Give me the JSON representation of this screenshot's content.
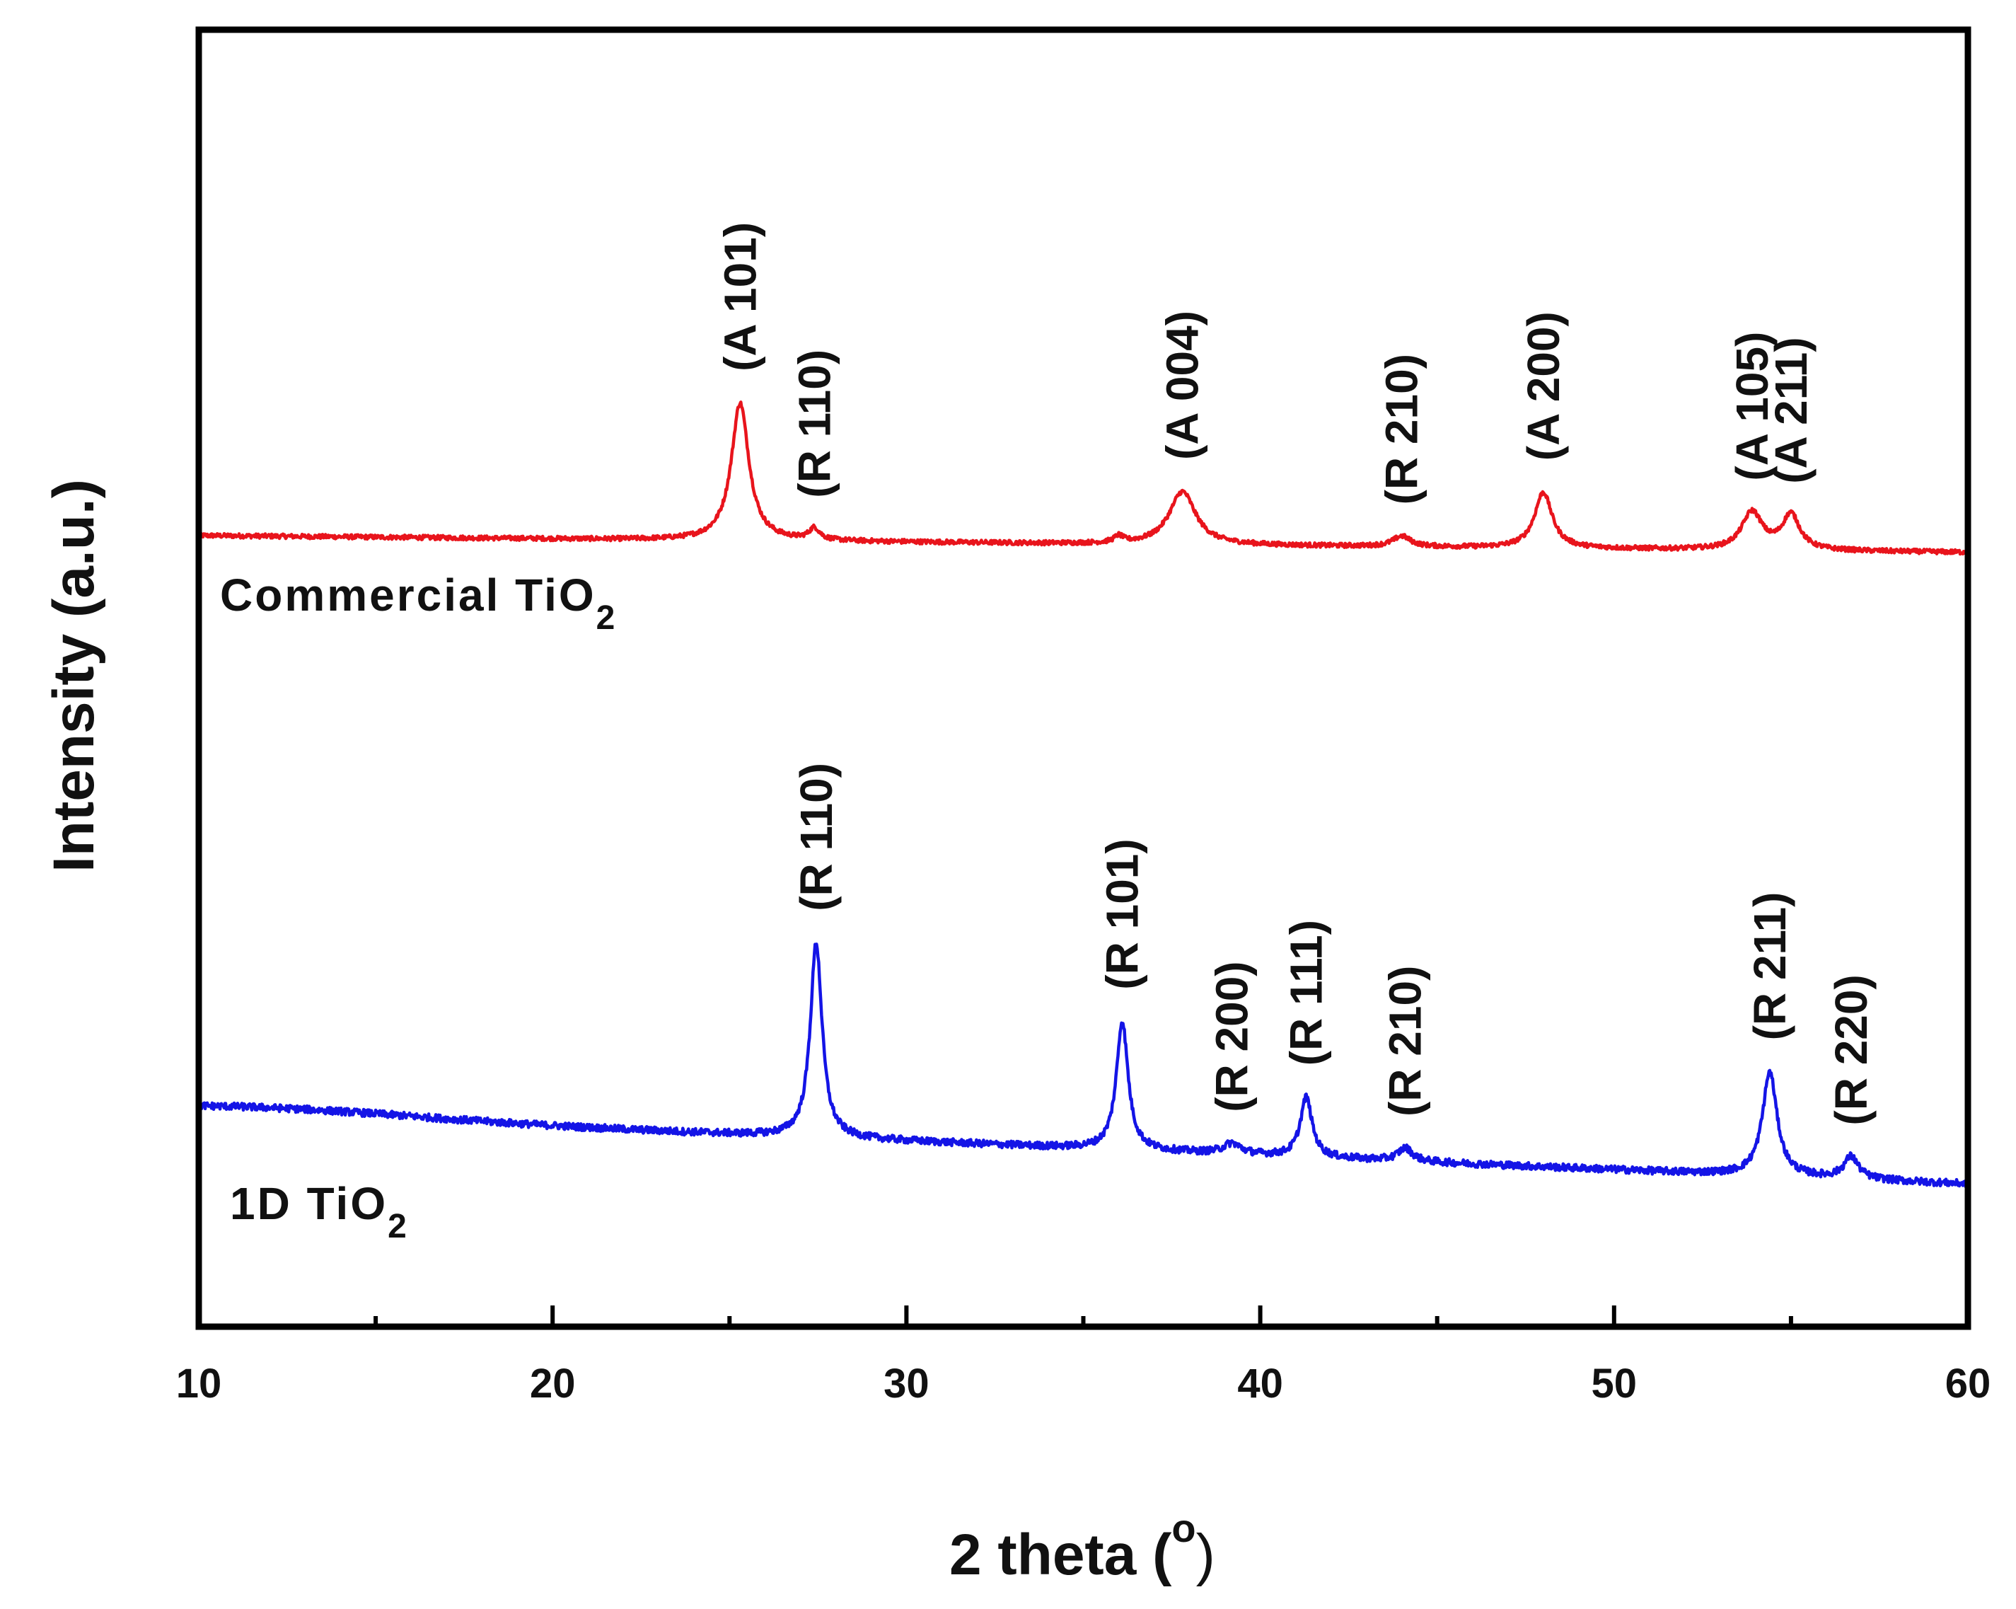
{
  "chart_data": {
    "type": "line",
    "title": "",
    "xlabel": "2 theta (",
    "xlabel_unit": "o",
    "xlabel_close": ")",
    "ylabel": "Intensity (a.u.)",
    "xlim": [
      10,
      60
    ],
    "ylim": [
      0,
      100
    ],
    "x_ticks": [
      10,
      20,
      30,
      40,
      50,
      60
    ],
    "x_tick_labels": [
      "10",
      "20",
      "30",
      "40",
      "50",
      "60"
    ],
    "y_ticks_shown": false,
    "series": [
      {
        "name": "Commercial TiO2",
        "label_main": "Commercial TiO",
        "label_sub": "2",
        "color": "#e8141c",
        "baseline_start": 61.0,
        "baseline_end": 59.7,
        "peaks": [
          {
            "x": 25.3,
            "height": 10.6,
            "width": 0.3,
            "label": "(A 101)"
          },
          {
            "x": 27.4,
            "height": 0.9,
            "width": 0.18,
            "label": "(R 110)"
          },
          {
            "x": 36.0,
            "height": 0.5,
            "width": 0.15,
            "label": ""
          },
          {
            "x": 37.8,
            "height": 4.1,
            "width": 0.45,
            "label": "(A 004)"
          },
          {
            "x": 44.0,
            "height": 0.8,
            "width": 0.3,
            "label": "(R 210)"
          },
          {
            "x": 48.0,
            "height": 4.3,
            "width": 0.3,
            "label": "(A 200)"
          },
          {
            "x": 53.9,
            "height": 2.9,
            "width": 0.35,
            "label": "(A 105)"
          },
          {
            "x": 55.0,
            "height": 2.7,
            "width": 0.3,
            "label": "(A 211)"
          }
        ]
      },
      {
        "name": "1D TiO2",
        "label_main": "1D TiO",
        "label_sub": "2",
        "color": "#1414e6",
        "baseline_start": 16.5,
        "baseline_end": 11.0,
        "peaks": [
          {
            "x": 27.45,
            "height": 15.0,
            "width": 0.2,
            "label": "(R 110)"
          },
          {
            "x": 36.1,
            "height": 9.9,
            "width": 0.2,
            "label": "(R 101)"
          },
          {
            "x": 39.2,
            "height": 0.8,
            "width": 0.3,
            "label": "(R 200)"
          },
          {
            "x": 41.3,
            "height": 4.6,
            "width": 0.2,
            "label": "(R 111)"
          },
          {
            "x": 44.1,
            "height": 1.0,
            "width": 0.25,
            "label": "(R 210)"
          },
          {
            "x": 54.4,
            "height": 8.0,
            "width": 0.25,
            "label": "(R 211)"
          },
          {
            "x": 56.7,
            "height": 1.7,
            "width": 0.25,
            "label": "(R 220)"
          }
        ]
      }
    ]
  }
}
